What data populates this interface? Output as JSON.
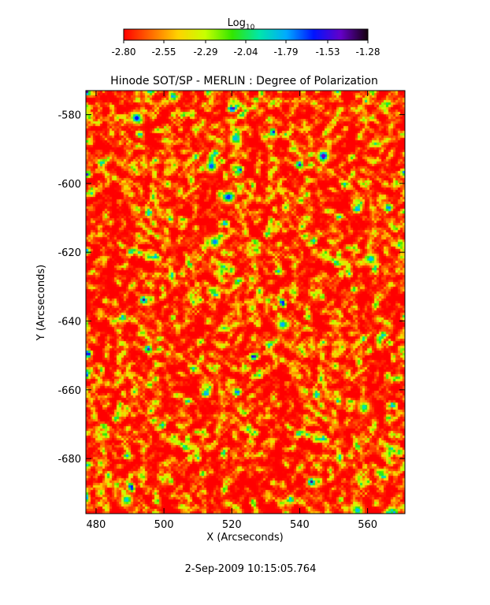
{
  "chart_data": {
    "type": "heatmap",
    "title": "Hinode SOT/SP - MERLIN : Degree of Polarization",
    "xlabel": "X (Arcseconds)",
    "ylabel": "Y (Arcseconds)",
    "xlim": [
      477,
      571
    ],
    "ylim": [
      -696,
      -573
    ],
    "x_ticks": [
      "480",
      "500",
      "520",
      "540",
      "560"
    ],
    "x_tick_values": [
      480,
      500,
      520,
      540,
      560
    ],
    "y_ticks": [
      "-580",
      "-600",
      "-620",
      "-640",
      "-660",
      "-680"
    ],
    "y_tick_values": [
      -580,
      -600,
      -620,
      -640,
      -660,
      -680
    ],
    "colorbar": {
      "label": "Log",
      "label_subscript": "10",
      "min": -2.8,
      "max": -1.28,
      "tick_labels": [
        "-2.80",
        "-2.55",
        "-2.29",
        "-2.04",
        "-1.79",
        "-1.53",
        "-1.28"
      ],
      "tick_values": [
        -2.8,
        -2.55,
        -2.29,
        -2.04,
        -1.79,
        -1.53,
        -1.28
      ],
      "colormap": [
        "#ff0000",
        "#ff6a00",
        "#ffd200",
        "#c8ff00",
        "#32e600",
        "#00e6aa",
        "#00aaff",
        "#0014ff",
        "#6400c8",
        "#14000a"
      ]
    },
    "hotspots": [
      {
        "x": 492,
        "y": -581,
        "value": -1.6
      },
      {
        "x": 547,
        "y": -592,
        "value": -1.45
      },
      {
        "x": 514,
        "y": -595,
        "value": -1.7
      },
      {
        "x": 519,
        "y": -604,
        "value": -1.65
      },
      {
        "x": 515,
        "y": -617,
        "value": -1.75
      },
      {
        "x": 521,
        "y": -587,
        "value": -1.85
      },
      {
        "x": 535,
        "y": -641,
        "value": -1.8
      },
      {
        "x": 561,
        "y": -622,
        "value": -1.85
      },
      {
        "x": 559,
        "y": -665,
        "value": -1.95
      },
      {
        "x": 489,
        "y": -692,
        "value": -1.9
      },
      {
        "x": 557,
        "y": -695,
        "value": -1.85
      }
    ],
    "grid": false
  },
  "footer": {
    "timestamp": "2-Sep-2009 10:15:05.764"
  }
}
